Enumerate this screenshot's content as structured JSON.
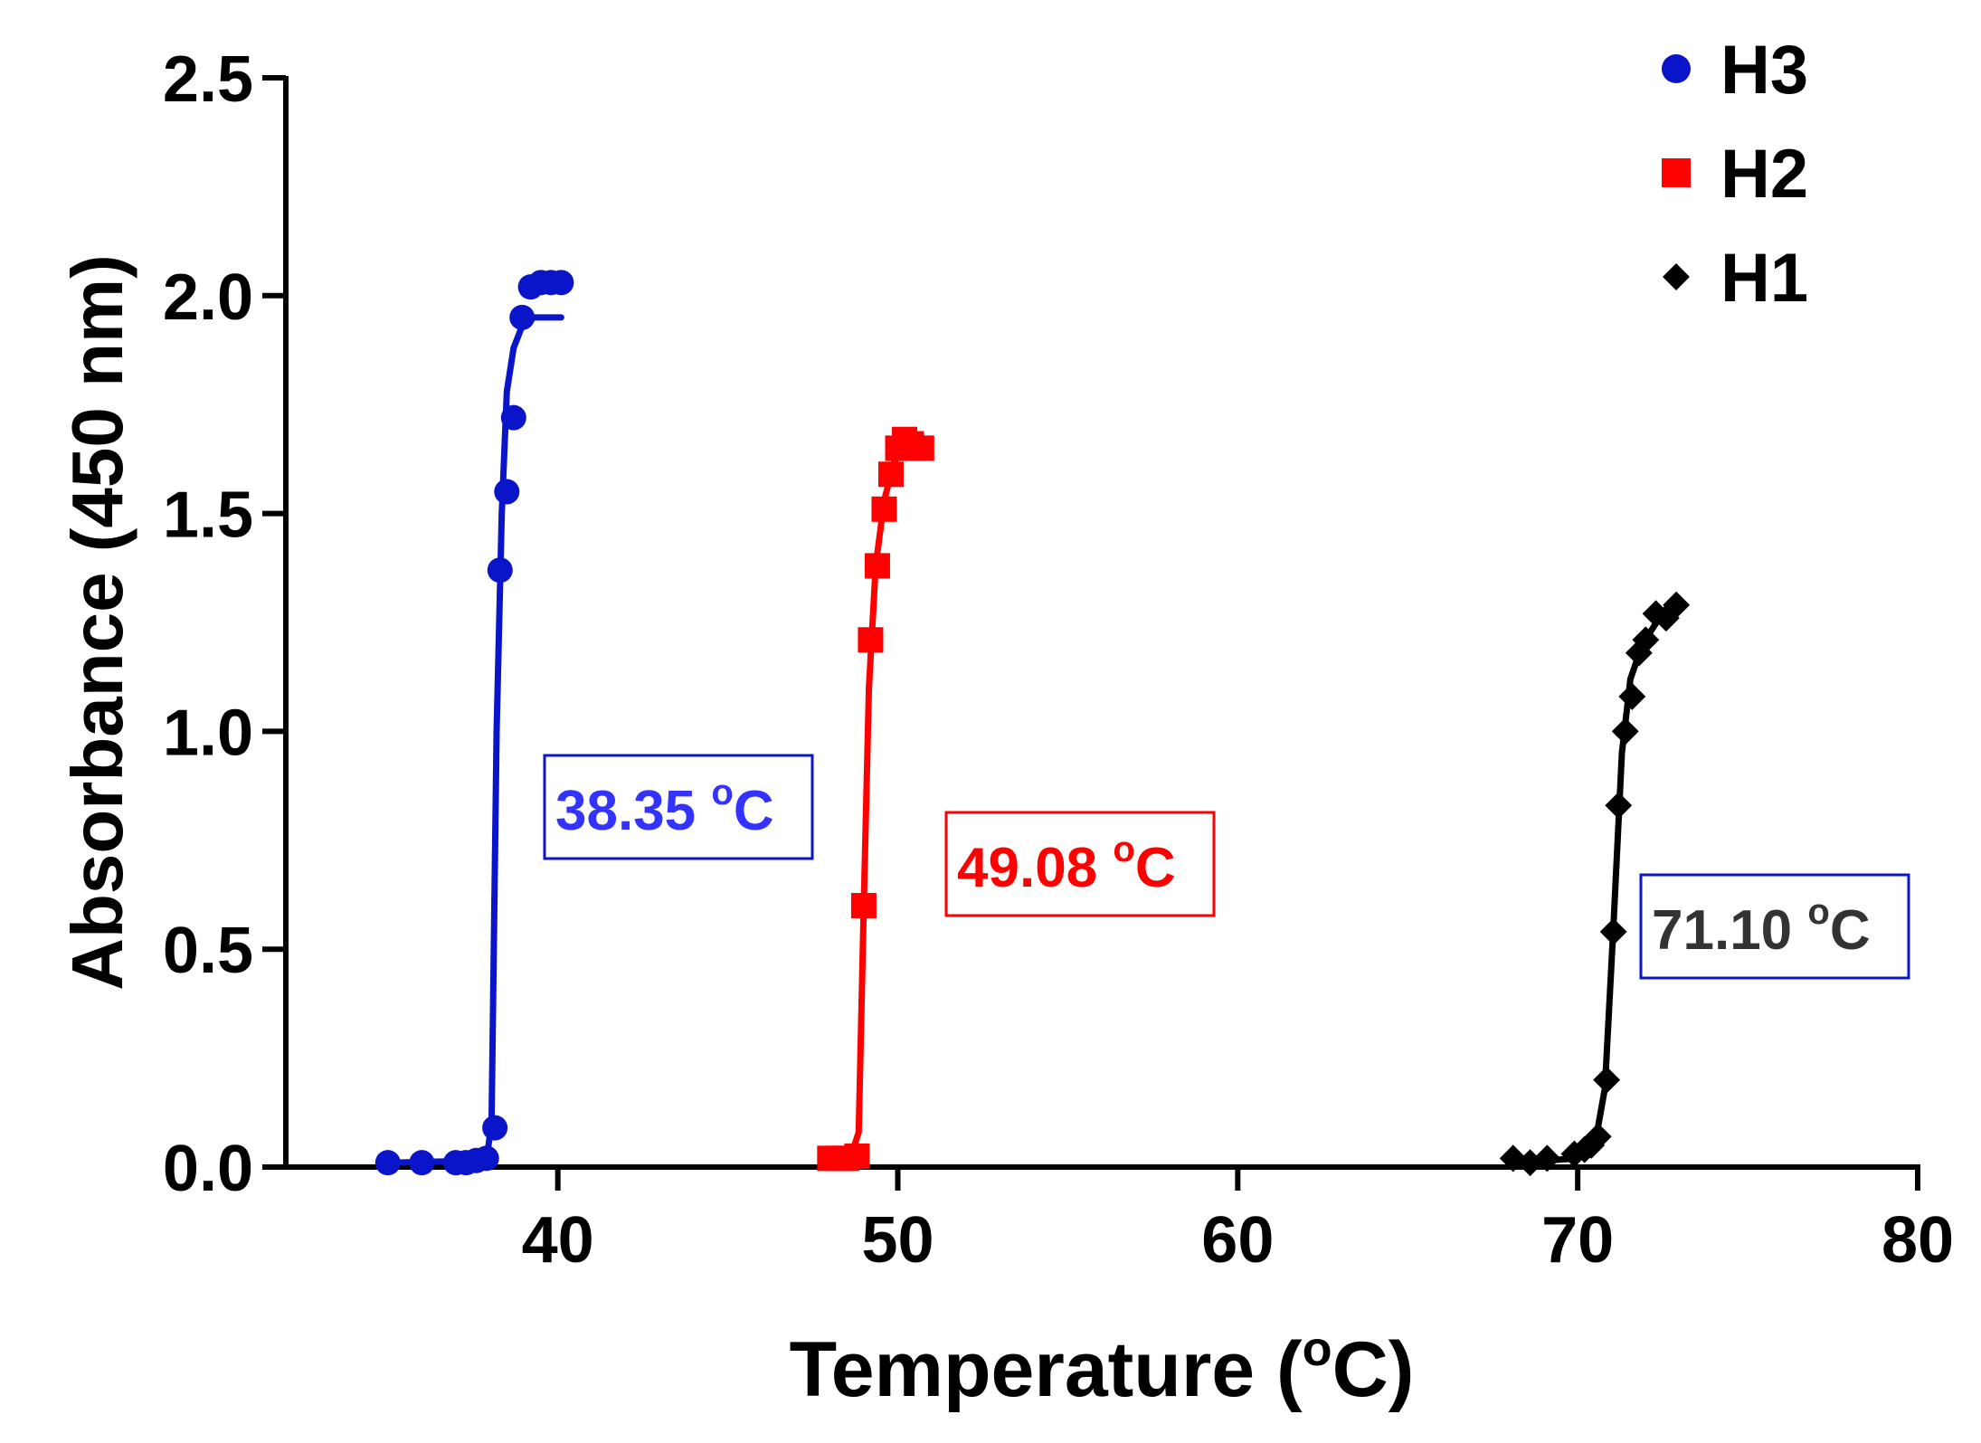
{
  "chart_data": {
    "type": "scatter",
    "title": "",
    "xlabel": "Temperature (",
    "xlabel_unit": "C)",
    "xlabel_sup": "o",
    "ylabel": "Absorbance (450 nm)",
    "xlim": [
      32,
      80
    ],
    "ylim": [
      0,
      2.5
    ],
    "xticks": [
      40,
      50,
      60,
      70,
      80
    ],
    "yticks": [
      0.0,
      0.5,
      1.0,
      1.5,
      2.0,
      2.5
    ],
    "xtick_labels": [
      "40",
      "50",
      "60",
      "70",
      "80"
    ],
    "ytick_labels": [
      "0.0",
      "0.5",
      "1.0",
      "1.5",
      "2.0",
      "2.5"
    ],
    "grid": false,
    "legend_position": "top-right",
    "series": [
      {
        "name": "H3",
        "color": "#0a14c8",
        "marker": "circle",
        "points": [
          [
            35.0,
            0.01
          ],
          [
            36.0,
            0.01
          ],
          [
            37.0,
            0.01
          ],
          [
            37.3,
            0.01
          ],
          [
            37.6,
            0.015
          ],
          [
            37.9,
            0.02
          ],
          [
            38.15,
            0.09
          ],
          [
            38.3,
            1.37
          ],
          [
            38.5,
            1.55
          ],
          [
            38.7,
            1.72
          ],
          [
            38.95,
            1.95
          ],
          [
            39.2,
            2.02
          ],
          [
            39.5,
            2.03
          ],
          [
            39.8,
            2.03
          ],
          [
            40.1,
            2.03
          ]
        ],
        "fit": [
          [
            35.0,
            0.01
          ],
          [
            37.9,
            0.015
          ],
          [
            38.05,
            0.1
          ],
          [
            38.2,
            1.0
          ],
          [
            38.35,
            1.5
          ],
          [
            38.5,
            1.78
          ],
          [
            38.7,
            1.88
          ],
          [
            38.95,
            1.93
          ],
          [
            39.3,
            1.95
          ],
          [
            40.1,
            1.95
          ]
        ],
        "midpoint_label": "38.35 ",
        "midpoint_unit": "C",
        "label_text_color": "#3333ff",
        "label_border_color": "#0a14c8"
      },
      {
        "name": "H2",
        "color": "#ff0000",
        "marker": "square",
        "points": [
          [
            48.0,
            0.02
          ],
          [
            48.3,
            0.02
          ],
          [
            48.5,
            0.02
          ],
          [
            48.8,
            0.025
          ],
          [
            49.0,
            0.6
          ],
          [
            49.2,
            1.21
          ],
          [
            49.4,
            1.38
          ],
          [
            49.6,
            1.51
          ],
          [
            49.8,
            1.59
          ],
          [
            50.0,
            1.65
          ],
          [
            50.2,
            1.67
          ],
          [
            50.4,
            1.66
          ],
          [
            50.7,
            1.65
          ]
        ],
        "fit": [
          [
            48.0,
            0.02
          ],
          [
            48.6,
            0.02
          ],
          [
            48.85,
            0.08
          ],
          [
            49.0,
            0.6
          ],
          [
            49.15,
            1.1
          ],
          [
            49.35,
            1.38
          ],
          [
            49.6,
            1.53
          ],
          [
            49.9,
            1.62
          ],
          [
            50.3,
            1.66
          ],
          [
            50.7,
            1.66
          ]
        ],
        "midpoint_label": "49.08 ",
        "midpoint_unit": "C",
        "label_text_color": "#ff0000",
        "label_border_color": "#ff0000"
      },
      {
        "name": "H1",
        "color": "#000000",
        "marker": "diamond",
        "points": [
          [
            68.1,
            0.02
          ],
          [
            68.6,
            0.01
          ],
          [
            69.1,
            0.02
          ],
          [
            69.9,
            0.03
          ],
          [
            70.2,
            0.04
          ],
          [
            70.4,
            0.05
          ],
          [
            70.6,
            0.07
          ],
          [
            70.85,
            0.2
          ],
          [
            71.05,
            0.54
          ],
          [
            71.2,
            0.83
          ],
          [
            71.4,
            1.0
          ],
          [
            71.6,
            1.08
          ],
          [
            71.8,
            1.18
          ],
          [
            72.0,
            1.21
          ],
          [
            72.3,
            1.27
          ],
          [
            72.6,
            1.26
          ],
          [
            72.9,
            1.29
          ]
        ],
        "fit": [
          [
            68.1,
            0.01
          ],
          [
            70.0,
            0.02
          ],
          [
            70.5,
            0.05
          ],
          [
            70.8,
            0.18
          ],
          [
            71.05,
            0.55
          ],
          [
            71.3,
            0.95
          ],
          [
            71.55,
            1.12
          ],
          [
            71.9,
            1.2
          ],
          [
            72.4,
            1.26
          ],
          [
            72.9,
            1.29
          ]
        ],
        "midpoint_label": "71.10 ",
        "midpoint_unit": "C",
        "label_text_color": "#333333",
        "label_border_color": "#0a14c8"
      }
    ],
    "midpoint_label_sup": "o"
  }
}
